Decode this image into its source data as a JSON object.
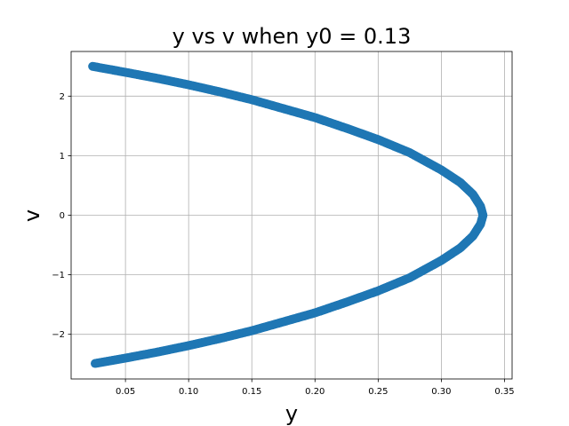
{
  "chart_data": {
    "type": "scatter",
    "title": "y vs v when y0 = 0.13",
    "xlabel": "y",
    "ylabel": "v",
    "xlim": [
      0.007,
      0.356
    ],
    "ylim": [
      -2.75,
      2.75
    ],
    "grid": true,
    "xticks": [
      0.05,
      0.1,
      0.15,
      0.2,
      0.25,
      0.3,
      0.35
    ],
    "xtick_labels": [
      "0.05",
      "0.10",
      "0.15",
      "0.20",
      "0.25",
      "0.30",
      "0.35"
    ],
    "yticks": [
      -2,
      -1,
      0,
      1,
      2
    ],
    "ytick_labels": [
      "−2",
      "−1",
      "0",
      "1",
      "2"
    ],
    "series": [
      {
        "color": "#1f77b4",
        "marker": "circle",
        "points": [
          [
            0.024,
            2.5
          ],
          [
            0.05,
            2.4
          ],
          [
            0.075,
            2.3
          ],
          [
            0.1,
            2.19
          ],
          [
            0.125,
            2.07
          ],
          [
            0.15,
            1.94
          ],
          [
            0.175,
            1.79
          ],
          [
            0.2,
            1.64
          ],
          [
            0.225,
            1.46
          ],
          [
            0.25,
            1.27
          ],
          [
            0.275,
            1.05
          ],
          [
            0.3,
            0.76
          ],
          [
            0.315,
            0.55
          ],
          [
            0.325,
            0.35
          ],
          [
            0.331,
            0.15
          ],
          [
            0.333,
            0.0
          ],
          [
            0.331,
            -0.15
          ],
          [
            0.325,
            -0.35
          ],
          [
            0.315,
            -0.55
          ],
          [
            0.3,
            -0.76
          ],
          [
            0.275,
            -1.05
          ],
          [
            0.25,
            -1.27
          ],
          [
            0.225,
            -1.46
          ],
          [
            0.2,
            -1.64
          ],
          [
            0.175,
            -1.79
          ],
          [
            0.15,
            -1.94
          ],
          [
            0.125,
            -2.07
          ],
          [
            0.1,
            -2.19
          ],
          [
            0.075,
            -2.3
          ],
          [
            0.05,
            -2.4
          ],
          [
            0.026,
            -2.49
          ]
        ]
      }
    ]
  }
}
